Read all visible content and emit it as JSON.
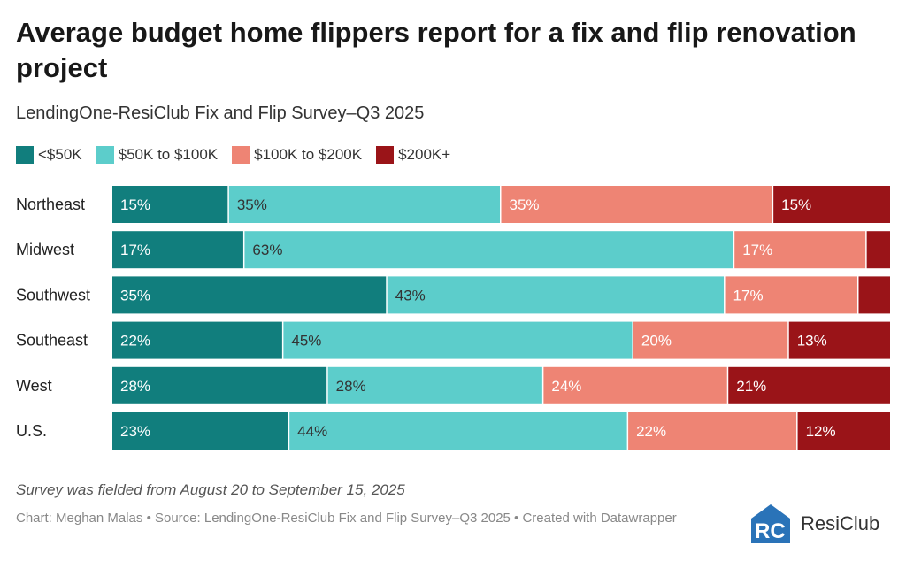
{
  "header": {
    "title": "Average budget home flippers report for a fix and flip renovation project",
    "subtitle": "LendingOne-ResiClub Fix and Flip Survey–Q3 2025"
  },
  "footer": {
    "note": "Survey was fielded from August 20 to September 15, 2025",
    "credits": "Chart: Meghan Malas • Source: LendingOne-ResiClub Fix and Flip Survey–Q3 2025 • Created with Datawrapper",
    "brand_name": "ResiClub"
  },
  "colors": {
    "under_50k": "#117e7d",
    "50k_100k": "#5ccdcb",
    "100k_200k": "#ee8474",
    "200k_plus": "#9a1418",
    "brand_blue": "#2a73b8"
  },
  "chart_data": {
    "type": "bar",
    "orientation": "horizontal",
    "stacked": true,
    "normalized_to": 100,
    "categories": [
      "Northeast",
      "Midwest",
      "Southwest",
      "Southeast",
      "West",
      "U.S."
    ],
    "series": [
      {
        "name": "<$50K",
        "color": "#117e7d",
        "values": [
          15,
          17,
          35,
          22,
          28,
          23
        ],
        "labels": [
          "15%",
          "17%",
          "35%",
          "22%",
          "28%",
          "23%"
        ]
      },
      {
        "name": "$50K to $100K",
        "color": "#5ccdcb",
        "values": [
          35,
          63,
          43,
          45,
          28,
          44
        ],
        "labels": [
          "35%",
          "63%",
          "43%",
          "45%",
          "28%",
          "44%"
        ]
      },
      {
        "name": "$100K to $200K",
        "color": "#ee8474",
        "values": [
          35,
          17,
          17,
          20,
          24,
          22
        ],
        "labels": [
          "35%",
          "17%",
          "17%",
          "20%",
          "24%",
          "22%"
        ]
      },
      {
        "name": "$200K+",
        "color": "#9a1418",
        "values": [
          15,
          3,
          4,
          13,
          21,
          12
        ],
        "labels": [
          "15%",
          "",
          "",
          "13%",
          "21%",
          "12%"
        ]
      }
    ],
    "legend_position": "top-left",
    "grid": false
  }
}
